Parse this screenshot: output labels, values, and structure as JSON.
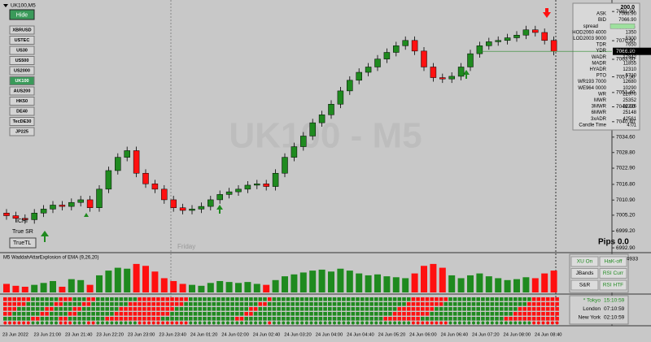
{
  "chart_data": [
    {
      "type": "candlestick",
      "title": "UK100,M5",
      "watermark": "UK100 - M5",
      "separator_label": "Friday",
      "open": [
        7006,
        7005,
        7004,
        7003.5,
        7006,
        7007.5,
        7009,
        7008.5,
        7010,
        7011,
        7008,
        7015,
        7022,
        7027,
        7029.5,
        7021,
        7017,
        7015,
        7011,
        7008,
        7007,
        7007.5,
        7008.5,
        7011,
        7013,
        7014,
        7015,
        7016.5,
        7017,
        7016,
        7021,
        7027,
        7031,
        7035,
        7040,
        7043,
        7047,
        7052,
        7056,
        7059,
        7061,
        7064,
        7066.5,
        7069,
        7071,
        7067,
        7061,
        7057,
        7056.5,
        7057.5,
        7061,
        7066,
        7069,
        7070.5,
        7071,
        7072,
        7073,
        7075,
        7074,
        7071
      ],
      "high": [
        7007.5,
        7006.5,
        7005.5,
        7007.5,
        7009,
        7010.5,
        7010.5,
        7011.5,
        7012.5,
        7012.5,
        7016.5,
        7023.5,
        7028.5,
        7031,
        7031,
        7022.5,
        7018.5,
        7016.5,
        7012.5,
        7009.5,
        7009,
        7010,
        7012.5,
        7014.5,
        7015.5,
        7016.5,
        7018,
        7018.5,
        7018.5,
        7022.5,
        7028.5,
        7032.5,
        7036.5,
        7041.5,
        7044.5,
        7048.5,
        7053.5,
        7057.5,
        7060.5,
        7062.5,
        7065.5,
        7068,
        7070.5,
        7072.5,
        7072.5,
        7068.5,
        7062.5,
        7058.5,
        7059,
        7062.5,
        7067.5,
        7070.5,
        7072,
        7072.5,
        7073.5,
        7074.5,
        7076.5,
        7076.5,
        7075.5,
        7072.5
      ],
      "low": [
        7003.5,
        7002.5,
        7002,
        7002,
        7004.5,
        7006,
        7007,
        7007,
        7008.5,
        7006.5,
        7006.5,
        7013.5,
        7020.5,
        7025.5,
        7019.5,
        7015.5,
        7013.5,
        7009.5,
        7006.5,
        7005.5,
        7005.5,
        7006,
        7007,
        7009.5,
        7011.5,
        7012.5,
        7013.5,
        7015,
        7014.5,
        7014.5,
        7019.5,
        7025.5,
        7029.5,
        7033.5,
        7038.5,
        7041.5,
        7045.5,
        7050.5,
        7054.5,
        7057.5,
        7059.5,
        7062.5,
        7065,
        7067.5,
        7065.5,
        7059.5,
        7055.5,
        7055,
        7055,
        7056,
        7059.5,
        7064.5,
        7067.5,
        7069,
        7069.5,
        7070.5,
        7071.5,
        7072.5,
        7069.5,
        7065.4
      ],
      "close": [
        7005,
        7004,
        7003.5,
        7006,
        7007.5,
        7009,
        7008.5,
        7010,
        7011,
        7008,
        7015,
        7022,
        7027,
        7029.5,
        7021,
        7017,
        7015,
        7011,
        7008,
        7007,
        7007.5,
        7008.5,
        7011,
        7013,
        7014,
        7015,
        7016.5,
        7017,
        7016,
        7021,
        7027,
        7031,
        7035,
        7040,
        7043,
        7047,
        7052,
        7056,
        7059,
        7061,
        7064,
        7066.5,
        7069,
        7071,
        7067,
        7061,
        7057,
        7056.5,
        7057.5,
        7061,
        7066,
        7069,
        7070.5,
        7071,
        7072,
        7073,
        7075,
        7074,
        7071,
        7066.9
      ],
      "up_color": "#1f8a1f",
      "down_color": "#ff1010",
      "ylim": [
        6991.4,
        7084.7
      ],
      "yticks": [
        {
          "value": 7081.9,
          "label": "7081.90"
        },
        {
          "value": 7075.9,
          "label": "7075.90"
        },
        {
          "value": 7070.9,
          "label": "7070.90"
        },
        {
          "value": 7063.9,
          "label": "7063.90"
        },
        {
          "value": 7057.3,
          "label": "7057.30"
        },
        {
          "value": 7051.4,
          "label": "7051.40"
        },
        {
          "value": 7046,
          "label": "7046.00"
        },
        {
          "value": 7040.4,
          "label": "7040.40"
        },
        {
          "value": 7034.6,
          "label": "7034.60"
        },
        {
          "value": 7028.8,
          "label": "7028.80"
        },
        {
          "value": 7022.9,
          "label": "7022.90"
        },
        {
          "value": 7016.8,
          "label": "7016.80"
        },
        {
          "value": 7010.9,
          "label": "7010.90"
        },
        {
          "value": 7005.2,
          "label": "7005.20"
        },
        {
          "value": 6999.2,
          "label": "6999.20"
        },
        {
          "value": 6992.9,
          "label": "6992.90"
        }
      ],
      "current_price": {
        "value": 7066.9,
        "label": "7066.90"
      },
      "xtick_labels": [
        "23 Jun 2022",
        "23 Jun 21:00",
        "23 Jun 21:40",
        "23 Jun 22:20",
        "23 Jun 23:00",
        "23 Jun 23:40",
        "24 Jun 01:20",
        "24 Jun 02:00",
        "24 Jun 02:40",
        "24 Jun 03:20",
        "24 Jun 04:00",
        "24 Jun 04:40",
        "24 Jun 05:20",
        "24 Jun 06:00",
        "24 Jun 06:40",
        "24 Jun 07:20",
        "24 Jun 08:00",
        "24 Jun 08:40"
      ],
      "grid": false
    },
    {
      "type": "bar",
      "title": "M5 WaddahAttarExplosion of EMA (9,26,20)",
      "values": [
        90,
        70,
        60,
        80,
        100,
        120,
        60,
        140,
        130,
        80,
        180,
        230,
        260,
        250,
        300,
        280,
        220,
        150,
        120,
        90,
        80,
        70,
        100,
        120,
        110,
        100,
        110,
        90,
        80,
        130,
        170,
        190,
        210,
        230,
        240,
        220,
        250,
        230,
        200,
        180,
        190,
        170,
        160,
        150,
        200,
        280,
        300,
        260,
        180,
        150,
        180,
        200,
        170,
        150,
        130,
        140,
        160,
        150,
        200,
        230
      ],
      "ylim": [
        0,
        350.4933
      ],
      "yticks": [
        350.4933
      ]
    }
  ],
  "symbols": {
    "hide": "Hide",
    "list": [
      "XBRUSD",
      "USTEC",
      "US30",
      "US500",
      "US2000",
      "UK100",
      "AUS200",
      "HK50",
      "DE40",
      "TecDE30",
      "JP225"
    ],
    "active_index": 5
  },
  "tools": [
    "ICHI",
    "True SR",
    "TrueTL"
  ],
  "pips": "Pips 0.0",
  "info_panel": {
    "header": "200.0",
    "rows": [
      [
        "ASK",
        "7066.90"
      ],
      [
        "BID",
        "7066.90"
      ],
      [
        "spread"
      ],
      [
        "HOD2060 4000",
        "1350"
      ],
      [
        "LOD2003 9000",
        "5300"
      ],
      [
        "TDR",
        "7650"
      ],
      [
        "YDR",
        "12700"
      ],
      [
        "WADR",
        "17842"
      ],
      [
        "MADR",
        "11855"
      ],
      [
        "HYADR",
        "12310"
      ],
      [
        "PTO",
        "5710"
      ],
      [
        "WR193 7000",
        "12680"
      ],
      [
        "WE964 0000",
        "10290"
      ],
      [
        "WR",
        "22970"
      ],
      [
        "MWR",
        "25352"
      ],
      [
        "3MWR",
        "22326"
      ],
      [
        "6MWR",
        "25148"
      ],
      [
        "3xADR",
        "42561"
      ],
      [
        "Candle Time",
        "4:01"
      ]
    ]
  },
  "wae_buttons": [
    [
      "XU On",
      "HaK-off"
    ],
    [
      "JBands",
      "RSI Curr"
    ],
    [
      "S&R",
      "RSI HTF"
    ]
  ],
  "sessions": [
    [
      "* Tokyo",
      "15:10:59"
    ],
    [
      "London",
      "07:10:59"
    ],
    [
      "New York",
      "02:10:59"
    ]
  ]
}
